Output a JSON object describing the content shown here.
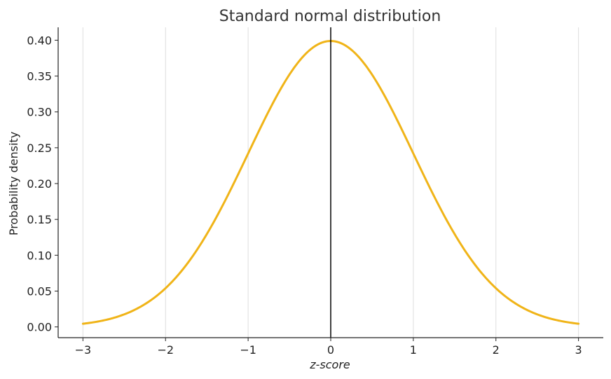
{
  "chart_data": {
    "type": "line",
    "title": "Standard normal distribution",
    "xlabel": "z-score",
    "ylabel": "Probability density",
    "xlim": [
      -3.3,
      3.3
    ],
    "ylim": [
      -0.015,
      0.418
    ],
    "x_ticks": [
      -3,
      -2,
      -1,
      0,
      1,
      2,
      3
    ],
    "x_tick_labels": [
      "−3",
      "−2",
      "−1",
      "0",
      "1",
      "2",
      "3"
    ],
    "y_ticks": [
      0.0,
      0.05,
      0.1,
      0.15,
      0.2,
      0.25,
      0.3,
      0.35,
      0.4
    ],
    "y_tick_labels": [
      "0.00",
      "0.05",
      "0.10",
      "0.15",
      "0.20",
      "0.25",
      "0.30",
      "0.35",
      "0.40"
    ],
    "grid": "vertical",
    "vline_x": 0,
    "series": [
      {
        "color": "#F0B418",
        "x": [
          -3.0,
          -2.5,
          -2.0,
          -1.5,
          -1.0,
          -0.5,
          0.0,
          0.5,
          1.0,
          1.5,
          2.0,
          2.5,
          3.0
        ],
        "y": [
          0.0044,
          0.0175,
          0.054,
          0.1295,
          0.242,
          0.352,
          0.399,
          0.352,
          0.242,
          0.1295,
          0.054,
          0.0175,
          0.0044
        ]
      }
    ],
    "colors": {
      "curve": "#F0B418",
      "grid": "#DDDDDD",
      "axis": "#222222",
      "vline": "#000000"
    }
  }
}
